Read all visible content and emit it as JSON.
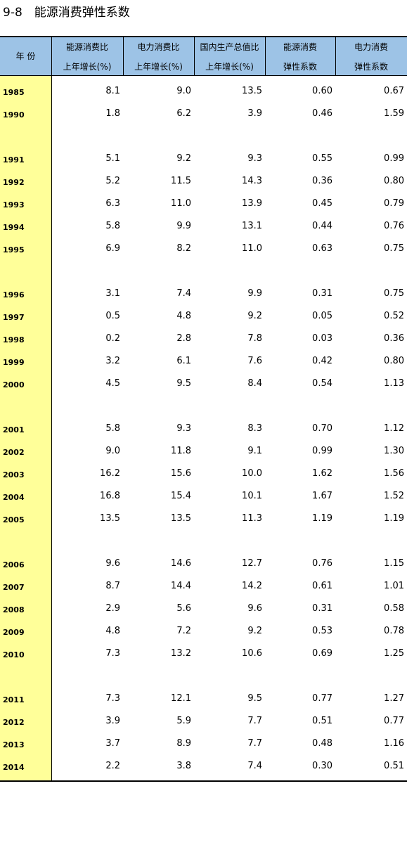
{
  "title": "9-8　能源消费弹性系数",
  "table": {
    "header": [
      [
        "年 份"
      ],
      [
        "能源消费比",
        "上年增长(%)"
      ],
      [
        "电力消费比",
        "上年增长(%)"
      ],
      [
        "国内生产总值比",
        "上年增长(%)"
      ],
      [
        "能源消费",
        "弹性系数"
      ],
      [
        "电力消费",
        "弹性系数"
      ]
    ],
    "groups": [
      [
        [
          "1985",
          "8.1",
          "9.0",
          "13.5",
          "0.60",
          "0.67"
        ],
        [
          "1990",
          "1.8",
          "6.2",
          "3.9",
          "0.46",
          "1.59"
        ]
      ],
      [
        [
          "1991",
          "5.1",
          "9.2",
          "9.3",
          "0.55",
          "0.99"
        ],
        [
          "1992",
          "5.2",
          "11.5",
          "14.3",
          "0.36",
          "0.80"
        ],
        [
          "1993",
          "6.3",
          "11.0",
          "13.9",
          "0.45",
          "0.79"
        ],
        [
          "1994",
          "5.8",
          "9.9",
          "13.1",
          "0.44",
          "0.76"
        ],
        [
          "1995",
          "6.9",
          "8.2",
          "11.0",
          "0.63",
          "0.75"
        ]
      ],
      [
        [
          "1996",
          "3.1",
          "7.4",
          "9.9",
          "0.31",
          "0.75"
        ],
        [
          "1997",
          "0.5",
          "4.8",
          "9.2",
          "0.05",
          "0.52"
        ],
        [
          "1998",
          "0.2",
          "2.8",
          "7.8",
          "0.03",
          "0.36"
        ],
        [
          "1999",
          "3.2",
          "6.1",
          "7.6",
          "0.42",
          "0.80"
        ],
        [
          "2000",
          "4.5",
          "9.5",
          "8.4",
          "0.54",
          "1.13"
        ]
      ],
      [
        [
          "2001",
          "5.8",
          "9.3",
          "8.3",
          "0.70",
          "1.12"
        ],
        [
          "2002",
          "9.0",
          "11.8",
          "9.1",
          "0.99",
          "1.30"
        ],
        [
          "2003",
          "16.2",
          "15.6",
          "10.0",
          "1.62",
          "1.56"
        ],
        [
          "2004",
          "16.8",
          "15.4",
          "10.1",
          "1.67",
          "1.52"
        ],
        [
          "2005",
          "13.5",
          "13.5",
          "11.3",
          "1.19",
          "1.19"
        ]
      ],
      [
        [
          "2006",
          "9.6",
          "14.6",
          "12.7",
          "0.76",
          "1.15"
        ],
        [
          "2007",
          "8.7",
          "14.4",
          "14.2",
          "0.61",
          "1.01"
        ],
        [
          "2008",
          "2.9",
          "5.6",
          "9.6",
          "0.31",
          "0.58"
        ],
        [
          "2009",
          "4.8",
          "7.2",
          "9.2",
          "0.53",
          "0.78"
        ],
        [
          "2010",
          "7.3",
          "13.2",
          "10.6",
          "0.69",
          "1.25"
        ]
      ],
      [
        [
          "2011",
          "7.3",
          "12.1",
          "9.5",
          "0.77",
          "1.27"
        ],
        [
          "2012",
          "3.9",
          "5.9",
          "7.7",
          "0.51",
          "0.77"
        ],
        [
          "2013",
          "3.7",
          "8.9",
          "7.7",
          "0.48",
          "1.16"
        ],
        [
          "2014",
          "2.2",
          "3.8",
          "7.4",
          "0.30",
          "0.51"
        ]
      ]
    ]
  }
}
